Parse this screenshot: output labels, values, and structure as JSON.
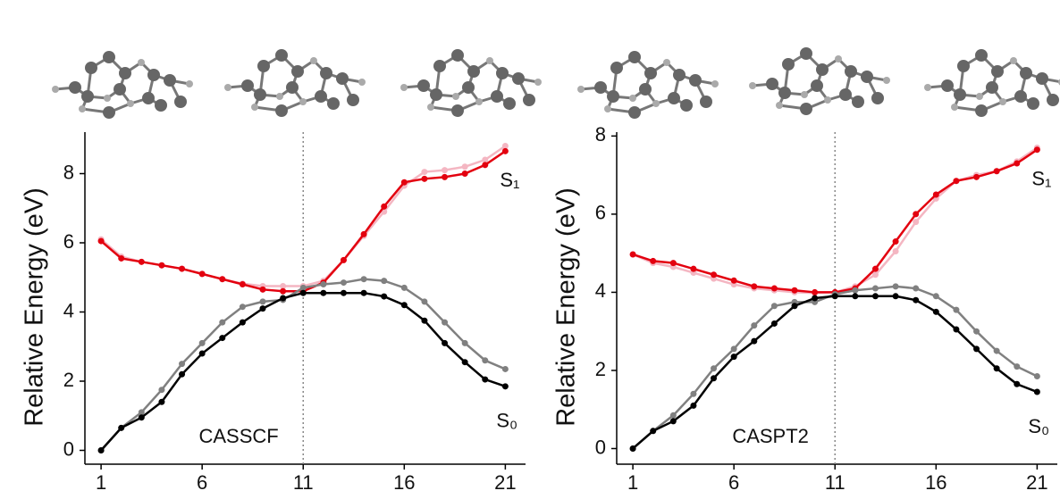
{
  "chart_data": [
    {
      "type": "line",
      "ylabel": "Relative Energy (eV)",
      "label": "CASSCF",
      "x": [
        1,
        2,
        3,
        4,
        5,
        6,
        7,
        8,
        9,
        10,
        11,
        12,
        13,
        14,
        15,
        16,
        17,
        18,
        19,
        20,
        21
      ],
      "xlim": [
        0.2,
        22
      ],
      "xticks": [
        1,
        6,
        11,
        16,
        21
      ],
      "ylim": [
        -0.4,
        9.2
      ],
      "yticks": [
        0,
        2,
        4,
        6,
        8
      ],
      "vline": 11,
      "annotations": [
        "S₁",
        "S₀"
      ],
      "series": [
        {
          "color": "#f4b6c2",
          "values": [
            6.1,
            5.6,
            5.45,
            5.35,
            5.25,
            5.1,
            4.95,
            4.82,
            4.75,
            4.75,
            4.75,
            4.9,
            5.5,
            6.2,
            6.9,
            7.65,
            8.05,
            8.1,
            8.2,
            8.4,
            8.8
          ]
        },
        {
          "color": "#e3000f",
          "values": [
            6.05,
            5.55,
            5.45,
            5.35,
            5.25,
            5.1,
            4.95,
            4.8,
            4.65,
            4.6,
            4.6,
            4.85,
            5.5,
            6.25,
            7.05,
            7.75,
            7.85,
            7.9,
            8.0,
            8.25,
            8.65
          ]
        },
        {
          "color": "#808080",
          "values": [
            0,
            0.65,
            1.1,
            1.75,
            2.5,
            3.1,
            3.7,
            4.15,
            4.3,
            4.35,
            4.7,
            4.8,
            4.85,
            4.95,
            4.9,
            4.7,
            4.3,
            3.7,
            3.1,
            2.6,
            2.35
          ]
        },
        {
          "color": "#000000",
          "values": [
            0,
            0.65,
            0.95,
            1.4,
            2.2,
            2.8,
            3.25,
            3.7,
            4.1,
            4.4,
            4.55,
            4.55,
            4.55,
            4.55,
            4.45,
            4.2,
            3.75,
            3.1,
            2.55,
            2.05,
            1.85
          ]
        }
      ]
    },
    {
      "type": "line",
      "ylabel": "Relative Energy (eV)",
      "label": "CASPT2",
      "x": [
        1,
        2,
        3,
        4,
        5,
        6,
        7,
        8,
        9,
        10,
        11,
        12,
        13,
        14,
        15,
        16,
        17,
        18,
        19,
        20,
        21
      ],
      "xlim": [
        0.2,
        22
      ],
      "xticks": [
        1,
        6,
        11,
        16,
        21
      ],
      "ylim": [
        -0.4,
        8.1
      ],
      "yticks": [
        0,
        2,
        4,
        6,
        8
      ],
      "vline": 11,
      "annotations": [
        "S₁",
        "S₀"
      ],
      "series": [
        {
          "color": "#f4b6c2",
          "values": [
            4.97,
            4.75,
            4.65,
            4.5,
            4.35,
            4.2,
            4.1,
            4.05,
            4.0,
            3.98,
            4.0,
            4.15,
            4.45,
            5.05,
            5.8,
            6.4,
            6.85,
            7.0,
            7.1,
            7.35,
            7.7
          ]
        },
        {
          "color": "#e3000f",
          "values": [
            4.97,
            4.8,
            4.75,
            4.6,
            4.45,
            4.3,
            4.15,
            4.1,
            4.05,
            4.0,
            4.0,
            4.1,
            4.6,
            5.3,
            6.0,
            6.5,
            6.85,
            6.95,
            7.1,
            7.3,
            7.65
          ]
        },
        {
          "color": "#808080",
          "values": [
            0,
            0.45,
            0.85,
            1.4,
            2.05,
            2.55,
            3.15,
            3.65,
            3.75,
            3.75,
            3.95,
            4.05,
            4.1,
            4.15,
            4.1,
            3.9,
            3.55,
            3.0,
            2.5,
            2.1,
            1.85
          ]
        },
        {
          "color": "#000000",
          "values": [
            0,
            0.45,
            0.7,
            1.1,
            1.8,
            2.35,
            2.75,
            3.2,
            3.65,
            3.85,
            3.9,
            3.9,
            3.9,
            3.9,
            3.8,
            3.5,
            3.05,
            2.55,
            2.05,
            1.65,
            1.45
          ]
        }
      ]
    }
  ]
}
